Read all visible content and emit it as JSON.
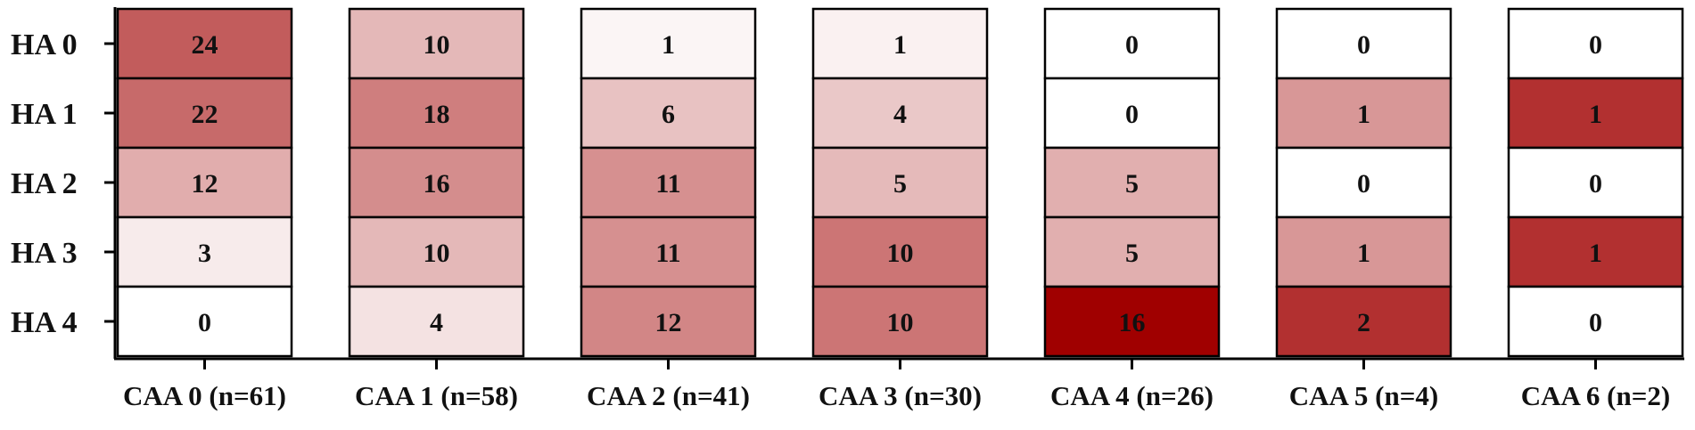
{
  "chart_data": {
    "type": "heatmap",
    "title": "",
    "xlabel": "",
    "ylabel": "",
    "rows": [
      "HA 0",
      "HA 1",
      "HA 2",
      "HA 3",
      "HA 4"
    ],
    "columns": [
      "CAA 0 (n=61)",
      "CAA 1 (n=58)",
      "CAA 2 (n=41)",
      "CAA 3 (n=30)",
      "CAA 4 (n=26)",
      "CAA 5 (n=4)",
      "CAA 6 (n=2)"
    ],
    "values": [
      [
        24,
        10,
        1,
        1,
        0,
        0,
        0
      ],
      [
        22,
        18,
        6,
        4,
        0,
        1,
        1
      ],
      [
        12,
        16,
        11,
        5,
        5,
        0,
        0
      ],
      [
        3,
        10,
        11,
        10,
        5,
        1,
        1
      ],
      [
        0,
        4,
        12,
        10,
        16,
        2,
        0
      ]
    ],
    "normalization": "per-column fraction of column total",
    "color_low": "#ffffff",
    "color_high": "#a00000",
    "grid": false,
    "legend": "none"
  }
}
